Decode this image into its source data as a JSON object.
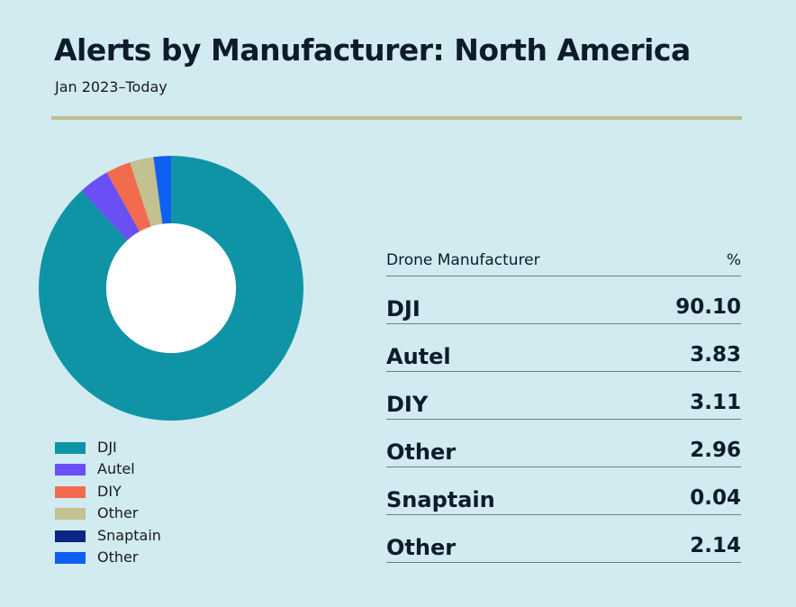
{
  "title": "Alerts by Manufacturer: North America",
  "subtitle": "Jan 2023–Today",
  "table": {
    "header_name": "Drone Manufacturer",
    "header_value": "%"
  },
  "chart_data": {
    "type": "pie",
    "donut": true,
    "title": "Alerts by Manufacturer: North America",
    "subtitle": "Jan 2023–Today",
    "legend_position": "bottom-left",
    "categories": [
      "DJI",
      "Autel",
      "DIY",
      "Other",
      "Snaptain",
      "Other"
    ],
    "values": [
      90.1,
      3.83,
      3.11,
      2.96,
      0.04,
      2.14
    ],
    "value_labels": [
      "90.10",
      "3.83",
      "3.11",
      "2.96",
      "0.04",
      "2.14"
    ],
    "colors": [
      "#0f94a6",
      "#6a4ff5",
      "#f26b4f",
      "#c2c18f",
      "#0c2583",
      "#0e60f0"
    ]
  }
}
